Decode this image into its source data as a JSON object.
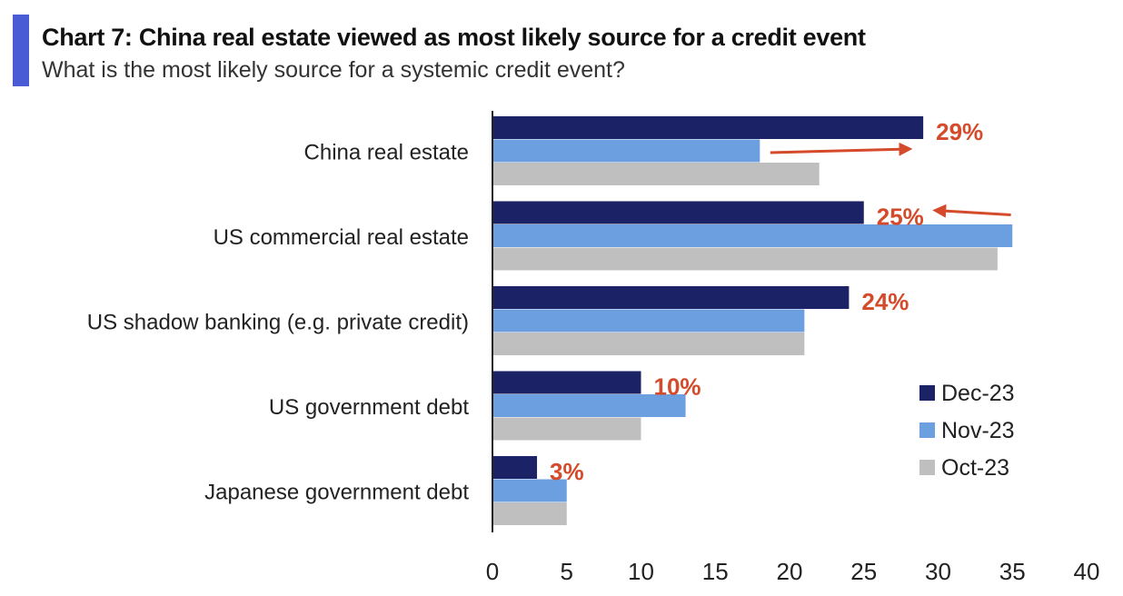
{
  "title": "Chart 7: China real estate viewed as most likely source for a credit event",
  "subtitle": "What is the most likely source for a systemic credit event?",
  "colors": {
    "accent": "#4a5bd6",
    "dec": "#1c2266",
    "nov": "#6c9fe0",
    "oct": "#bfbfbf",
    "annotation": "#d44a2a"
  },
  "chart_data": {
    "type": "bar",
    "orientation": "horizontal",
    "title": "Chart 7: China real estate viewed as most likely source for a credit event",
    "subtitle": "What is the most likely source for a systemic credit event?",
    "categories": [
      "China real estate",
      "US commercial real estate",
      "US shadow banking (e.g. private credit)",
      "US government debt",
      "Japanese government debt"
    ],
    "series": [
      {
        "name": "Dec-23",
        "values": [
          29,
          25,
          24,
          10,
          3
        ]
      },
      {
        "name": "Nov-23",
        "values": [
          18,
          35,
          21,
          13,
          5
        ]
      },
      {
        "name": "Oct-23",
        "values": [
          22,
          34,
          21,
          10,
          5
        ]
      }
    ],
    "data_labels": [
      "29%",
      "25%",
      "24%",
      "10%",
      "3%"
    ],
    "xlim": [
      0,
      40
    ],
    "xticks": [
      "0",
      "5",
      "10",
      "15",
      "20",
      "25",
      "30",
      "35",
      "40"
    ],
    "legend_position": "right",
    "grid": false,
    "annotations": [
      {
        "type": "arrow",
        "category": "China real estate",
        "direction": "right"
      },
      {
        "type": "arrow",
        "category": "US commercial real estate",
        "direction": "left"
      }
    ]
  }
}
